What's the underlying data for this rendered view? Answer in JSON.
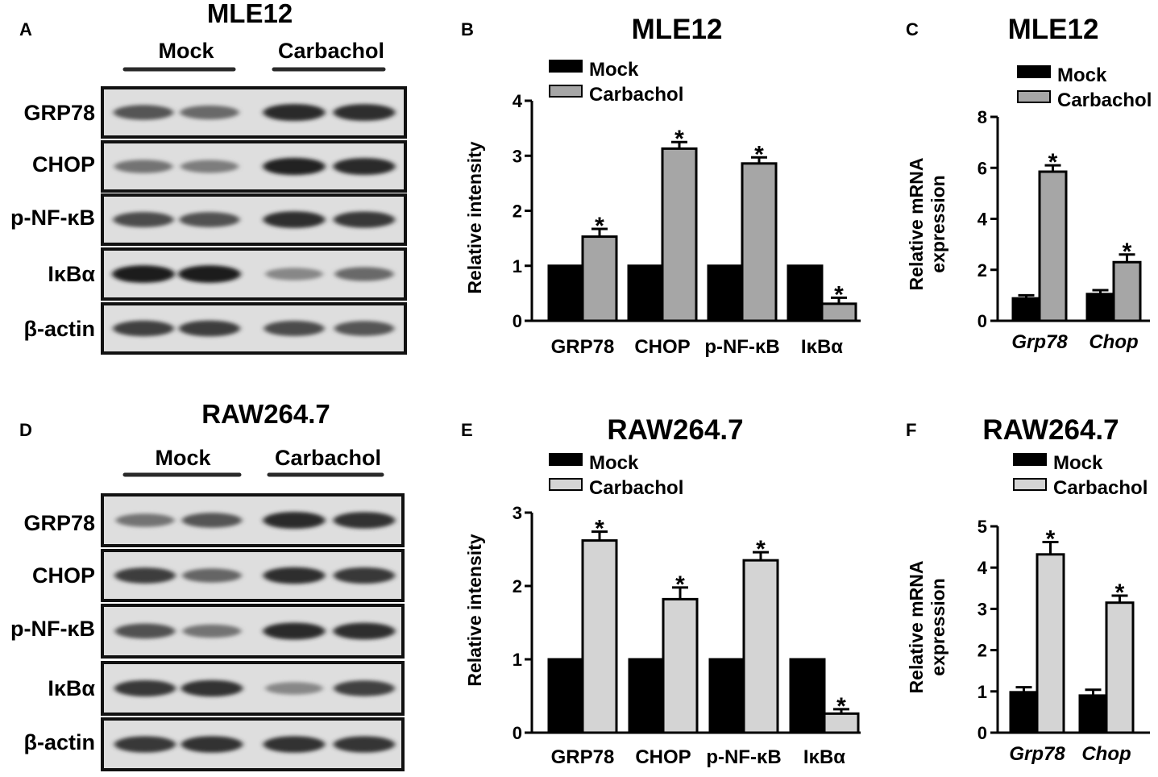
{
  "blots": [
    {
      "id": "blot-a",
      "letter": "A",
      "title": "MLE12",
      "groups": [
        "Mock",
        "Carbachol"
      ],
      "rows": [
        "GRP78",
        "CHOP",
        "p-NF-κB",
        "IκBα",
        "β-actin"
      ],
      "band_intensity": [
        [
          0.7,
          0.6,
          0.92,
          0.9
        ],
        [
          0.55,
          0.5,
          0.95,
          0.92
        ],
        [
          0.75,
          0.72,
          0.9,
          0.85
        ],
        [
          0.98,
          0.97,
          0.45,
          0.6
        ],
        [
          0.8,
          0.82,
          0.75,
          0.7
        ]
      ]
    },
    {
      "id": "blot-d",
      "letter": "D",
      "title": "RAW264.7",
      "groups": [
        "Mock",
        "Carbachol"
      ],
      "rows": [
        "GRP78",
        "CHOP",
        "p-NF-κB",
        "IκBα",
        "β-actin"
      ],
      "band_intensity": [
        [
          0.55,
          0.7,
          0.92,
          0.88
        ],
        [
          0.82,
          0.62,
          0.9,
          0.85
        ],
        [
          0.72,
          0.55,
          0.92,
          0.9
        ],
        [
          0.85,
          0.88,
          0.45,
          0.8
        ],
        [
          0.85,
          0.88,
          0.88,
          0.86
        ]
      ]
    }
  ],
  "chart_data": [
    {
      "id": "chart-b",
      "letter": "B",
      "type": "bar",
      "title": "MLE12",
      "ylabel": "Relative intensity",
      "categories": [
        "GRP78",
        "CHOP",
        "p-NF-κB",
        "IκBα"
      ],
      "italic_categories": false,
      "ylim": [
        0,
        4
      ],
      "yticks": [
        0,
        1,
        2,
        3,
        4
      ],
      "series": [
        {
          "name": "Mock",
          "color": "#000000",
          "values": [
            1,
            1,
            1,
            1
          ],
          "errors": [
            0,
            0,
            0,
            0
          ]
        },
        {
          "name": "Carbachol",
          "color": "#a6a6a6",
          "values": [
            1.53,
            3.13,
            2.86,
            0.31
          ],
          "errors": [
            0.14,
            0.12,
            0.11,
            0.11
          ]
        }
      ],
      "significance": [
        "*",
        "*",
        "*",
        "*"
      ],
      "legend": "top-left"
    },
    {
      "id": "chart-c",
      "letter": "C",
      "type": "bar",
      "title": "MLE12",
      "ylabel": [
        "Relative mRNA",
        "expression"
      ],
      "categories": [
        "Grp78",
        "Chop"
      ],
      "italic_categories": true,
      "ylim": [
        0,
        8
      ],
      "yticks": [
        0,
        2,
        4,
        6,
        8
      ],
      "series": [
        {
          "name": "Mock",
          "color": "#000000",
          "values": [
            0.88,
            1.05
          ],
          "errors": [
            0.12,
            0.15
          ]
        },
        {
          "name": "Carbachol",
          "color": "#a6a6a6",
          "values": [
            5.85,
            2.3
          ],
          "errors": [
            0.25,
            0.3
          ]
        }
      ],
      "significance": [
        "*",
        "*"
      ],
      "legend": "top-left"
    },
    {
      "id": "chart-e",
      "letter": "E",
      "type": "bar",
      "title": "RAW264.7",
      "ylabel": "Relative intensity",
      "categories": [
        "GRP78",
        "CHOP",
        "p-NF-κB",
        "IκBα"
      ],
      "italic_categories": false,
      "ylim": [
        0,
        3
      ],
      "yticks": [
        0,
        1,
        2,
        3
      ],
      "series": [
        {
          "name": "Mock",
          "color": "#000000",
          "values": [
            1,
            1,
            1,
            1
          ],
          "errors": [
            0,
            0,
            0,
            0
          ]
        },
        {
          "name": "Carbachol",
          "color": "#d4d4d4",
          "values": [
            2.62,
            1.82,
            2.35,
            0.26
          ],
          "errors": [
            0.12,
            0.16,
            0.11,
            0.06
          ]
        }
      ],
      "significance": [
        "*",
        "*",
        "*",
        "*"
      ],
      "legend": "top-left"
    },
    {
      "id": "chart-f",
      "letter": "F",
      "type": "bar",
      "title": "RAW264.7",
      "ylabel": [
        "Relative mRNA",
        "expression"
      ],
      "categories": [
        "Grp78",
        "Chop"
      ],
      "italic_categories": true,
      "ylim": [
        0,
        5
      ],
      "yticks": [
        0,
        1,
        2,
        3,
        4,
        5
      ],
      "series": [
        {
          "name": "Mock",
          "color": "#000000",
          "values": [
            0.98,
            0.9
          ],
          "errors": [
            0.12,
            0.14
          ]
        },
        {
          "name": "Carbachol",
          "color": "#d4d4d4",
          "values": [
            4.32,
            3.15
          ],
          "errors": [
            0.3,
            0.17
          ]
        }
      ],
      "significance": [
        "*",
        "*"
      ],
      "legend": "top-left"
    }
  ]
}
